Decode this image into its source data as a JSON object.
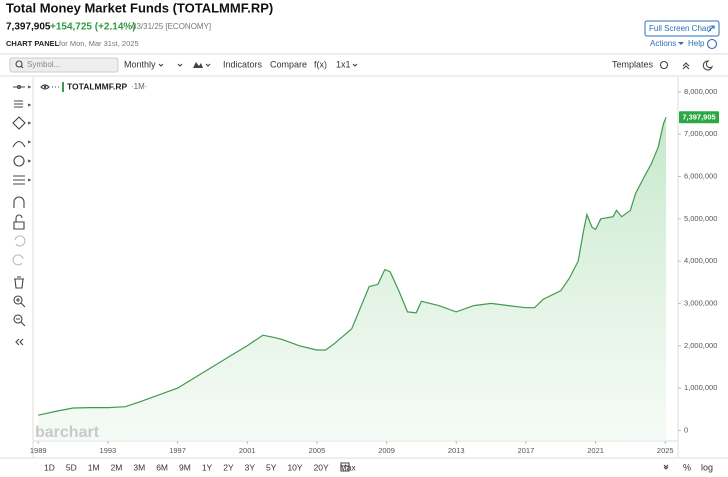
{
  "header": {
    "title": "Total Money Market Funds (TOTALMMF.RP)",
    "price": "7,397,905",
    "change": "+154,725 (+2.14%)",
    "date": "03/31/25 [ECONOMY]",
    "panel_label": "CHART PANEL",
    "panel_date": "for Mon, Mar 31st, 2025",
    "fullscreen": "Full Screen Chart",
    "actions": "Actions",
    "help": "Help"
  },
  "toolbar": {
    "symbol_placeholder": "Symbol...",
    "interval": "Monthly",
    "indicators": "Indicators",
    "compare": "Compare",
    "fx": "f(x)",
    "layout": "1x1",
    "templates": "Templates"
  },
  "chart_data": {
    "type": "area",
    "legend_label": "TOTALMMF.RP",
    "legend_interval": "·1M·",
    "watermark": "barchart",
    "color": "#3f9a4f",
    "x": [
      1989,
      1990,
      1991,
      1992,
      1993,
      1994,
      1995,
      1996,
      1997,
      1998,
      1999,
      2000,
      2001,
      2001.9,
      2002.5,
      2003,
      2004,
      2005,
      2005.5,
      2006,
      2007,
      2008,
      2008.5,
      2008.9,
      2009.2,
      2009.7,
      2010.2,
      2010.7,
      2011,
      2012,
      2013,
      2014,
      2015,
      2016,
      2017,
      2017.5,
      2018,
      2019,
      2019.5,
      2020,
      2020.3,
      2020.5,
      2020.8,
      2021,
      2021.3,
      2022,
      2022.2,
      2022.5,
      2023,
      2023.3,
      2023.8,
      2024.2,
      2024.6,
      2024.9,
      2025.05
    ],
    "values": [
      360000,
      450000,
      530000,
      540000,
      540000,
      560000,
      700000,
      850000,
      1000000,
      1250000,
      1500000,
      1750000,
      2000000,
      2250000,
      2200000,
      2150000,
      2000000,
      1900000,
      1900000,
      2050000,
      2400000,
      3400000,
      3450000,
      3800000,
      3750000,
      3300000,
      2800000,
      2780000,
      3050000,
      2950000,
      2800000,
      2950000,
      3000000,
      2950000,
      2900000,
      2900000,
      3100000,
      3300000,
      3600000,
      4000000,
      4700000,
      5100000,
      4800000,
      4750000,
      5000000,
      5050000,
      5200000,
      5050000,
      5200000,
      5600000,
      6000000,
      6300000,
      6700000,
      7250000,
      7397905
    ],
    "xlim": [
      1988.7,
      2025.1
    ],
    "xticks": [
      1989,
      1993,
      1997,
      2001,
      2005,
      2009,
      2013,
      2017,
      2021,
      2025
    ],
    "ylim": [
      -250000,
      8350000
    ],
    "yticks": [
      0,
      {
        "value": 1000000,
        "label": "1,000,000"
      },
      {
        "value": 2000000,
        "label": "2,000,000"
      },
      {
        "value": 3000000,
        "label": "3,000,000"
      },
      {
        "value": 4000000,
        "label": "4,000,000"
      },
      {
        "value": 5000000,
        "label": "5,000,000"
      },
      {
        "value": 6000000,
        "label": "6,000,000"
      },
      {
        "value": 7000000,
        "label": "7,000,000"
      },
      {
        "value": 8000000,
        "label": "8,000,000"
      }
    ],
    "price_tag": {
      "value": 7397905,
      "label": "7,397,905"
    }
  },
  "range_buttons": [
    "1D",
    "5D",
    "1M",
    "2M",
    "3M",
    "6M",
    "9M",
    "1Y",
    "2Y",
    "3Y",
    "5Y",
    "10Y",
    "20Y",
    "Max"
  ],
  "bottom_right": {
    "percent": "%",
    "log": "log"
  }
}
